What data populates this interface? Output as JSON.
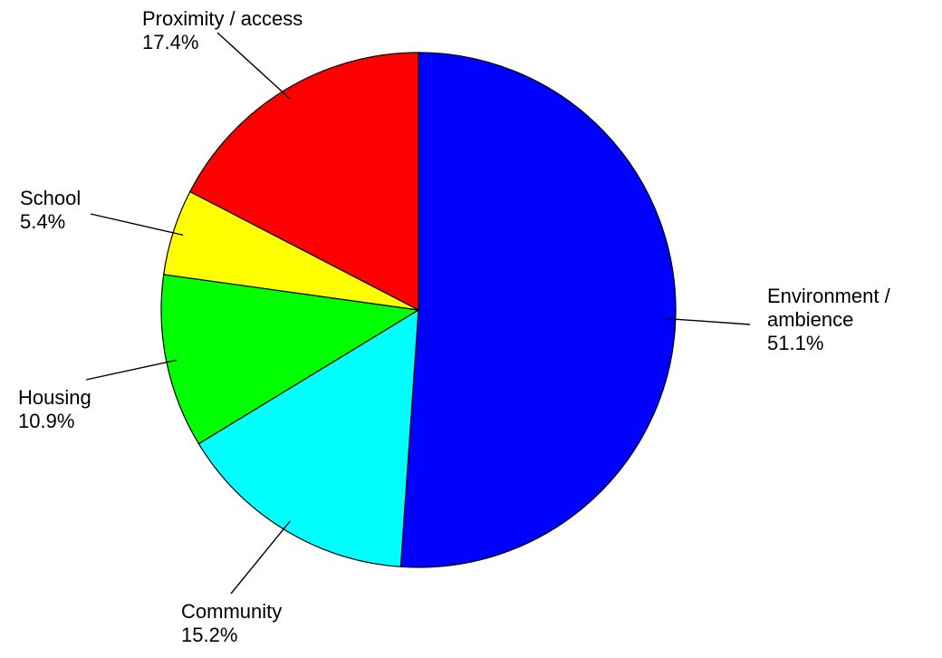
{
  "chart_data": {
    "type": "pie",
    "categories": [
      "Environment / ambience",
      "Community",
      "Housing",
      "School",
      "Proximity / access"
    ],
    "label_lines": [
      [
        "Environment /",
        "ambience",
        "51.1%"
      ],
      [
        "Community",
        "15.2%"
      ],
      [
        "Housing",
        "10.9%"
      ],
      [
        "School",
        "5.4%"
      ],
      [
        "Proximity / access",
        "17.4%"
      ]
    ],
    "values": [
      51.1,
      15.2,
      10.9,
      5.4,
      17.4
    ],
    "percent_labels": [
      "51.1%",
      "15.2%",
      "10.9%",
      "5.4%",
      "17.4%"
    ],
    "colors": [
      "#0000ff",
      "#00ffff",
      "#00ff00",
      "#ffff00",
      "#ff0000"
    ],
    "start_angle": "12 o'clock",
    "direction": "clockwise",
    "legend": "none"
  }
}
